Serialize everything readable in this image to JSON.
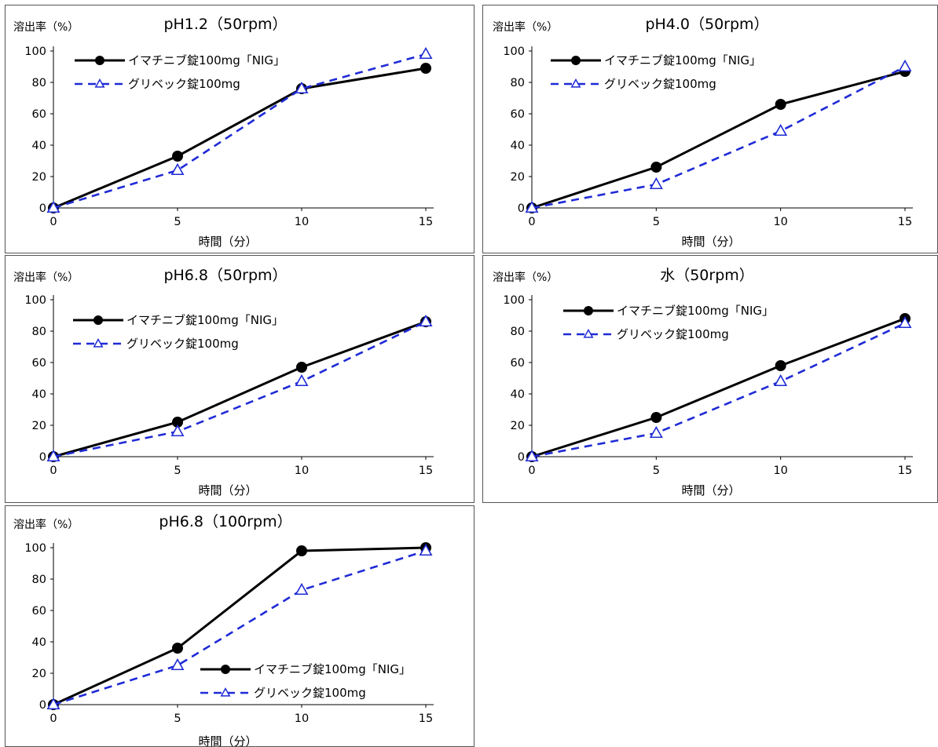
{
  "legend_labels": [
    "イマチニブ錠100mg「NIG」",
    "グリベック錠100mg"
  ],
  "chart_data": [
    {
      "type": "line",
      "title": "pH1.2（50rpm）",
      "ylabel": "溶出率（%）",
      "xlabel": "時間（分）",
      "x": [
        0,
        5,
        10,
        15
      ],
      "xticks": [
        0,
        5,
        10,
        15
      ],
      "yticks": [
        0,
        20,
        40,
        60,
        80,
        100
      ],
      "ylim": [
        0,
        100
      ],
      "xlim": [
        0,
        15
      ],
      "legend": "top-left",
      "series": [
        {
          "name": "イマチニブ錠100mg「NIG」",
          "values": [
            0,
            33,
            76,
            89
          ],
          "color": "#000000",
          "style": "solid",
          "marker": "filled-circle"
        },
        {
          "name": "グリベック錠100mg",
          "values": [
            0,
            24,
            76,
            98
          ],
          "color": "#1f2bd6",
          "style": "dashed",
          "marker": "open-triangle"
        }
      ]
    },
    {
      "type": "line",
      "title": "pH4.0（50rpm）",
      "ylabel": "溶出率（%）",
      "xlabel": "時間（分）",
      "x": [
        0,
        5,
        10,
        15
      ],
      "xticks": [
        0,
        5,
        10,
        15
      ],
      "yticks": [
        0,
        20,
        40,
        60,
        80,
        100
      ],
      "ylim": [
        0,
        100
      ],
      "xlim": [
        0,
        15
      ],
      "legend": "top-left",
      "series": [
        {
          "name": "イマチニブ錠100mg「NIG」",
          "values": [
            0,
            26,
            66,
            87
          ],
          "color": "#000000",
          "style": "solid",
          "marker": "filled-circle"
        },
        {
          "name": "グリベック錠100mg",
          "values": [
            0,
            15,
            49,
            90
          ],
          "color": "#1f2bd6",
          "style": "dashed",
          "marker": "open-triangle"
        }
      ]
    },
    {
      "type": "line",
      "title": "pH6.8（50rpm）",
      "ylabel": "溶出率（%）",
      "xlabel": "時間（分）",
      "x": [
        0,
        5,
        10,
        15
      ],
      "xticks": [
        0,
        5,
        10,
        15
      ],
      "yticks": [
        0,
        20,
        40,
        60,
        80,
        100
      ],
      "ylim": [
        0,
        100
      ],
      "xlim": [
        0,
        15
      ],
      "legend": "top-left",
      "series": [
        {
          "name": "イマチニブ錠100mg「NIG」",
          "values": [
            0,
            22,
            57,
            86
          ],
          "color": "#000000",
          "style": "solid",
          "marker": "filled-circle"
        },
        {
          "name": "グリベック錠100mg",
          "values": [
            0,
            16,
            48,
            86
          ],
          "color": "#1f2bd6",
          "style": "dashed",
          "marker": "open-triangle"
        }
      ]
    },
    {
      "type": "line",
      "title": "水（50rpm）",
      "ylabel": "溶出率（%）",
      "xlabel": "時間（分）",
      "x": [
        0,
        5,
        10,
        15
      ],
      "xticks": [
        0,
        5,
        10,
        15
      ],
      "yticks": [
        0,
        20,
        40,
        60,
        80,
        100
      ],
      "ylim": [
        0,
        100
      ],
      "xlim": [
        0,
        15
      ],
      "legend": "top-left",
      "series": [
        {
          "name": "イマチニブ錠100mg「NIG」",
          "values": [
            0,
            25,
            58,
            88
          ],
          "color": "#000000",
          "style": "solid",
          "marker": "filled-circle"
        },
        {
          "name": "グリベック錠100mg",
          "values": [
            0,
            15,
            48,
            85
          ],
          "color": "#1f2bd6",
          "style": "dashed",
          "marker": "open-triangle"
        }
      ]
    },
    {
      "type": "line",
      "title": "pH6.8（100rpm）",
      "ylabel": "溶出率（%）",
      "xlabel": "時間（分）",
      "x": [
        0,
        5,
        10,
        15
      ],
      "xticks": [
        0,
        5,
        10,
        15
      ],
      "yticks": [
        0,
        20,
        40,
        60,
        80,
        100
      ],
      "ylim": [
        0,
        100
      ],
      "xlim": [
        0,
        15
      ],
      "legend": "bottom-right",
      "series": [
        {
          "name": "イマチニブ錠100mg「NIG」",
          "values": [
            0,
            36,
            98,
            100
          ],
          "color": "#000000",
          "style": "solid",
          "marker": "filled-circle"
        },
        {
          "name": "グリベック錠100mg",
          "values": [
            0,
            25,
            73,
            98
          ],
          "color": "#1f2bd6",
          "style": "dashed",
          "marker": "open-triangle"
        }
      ]
    }
  ]
}
